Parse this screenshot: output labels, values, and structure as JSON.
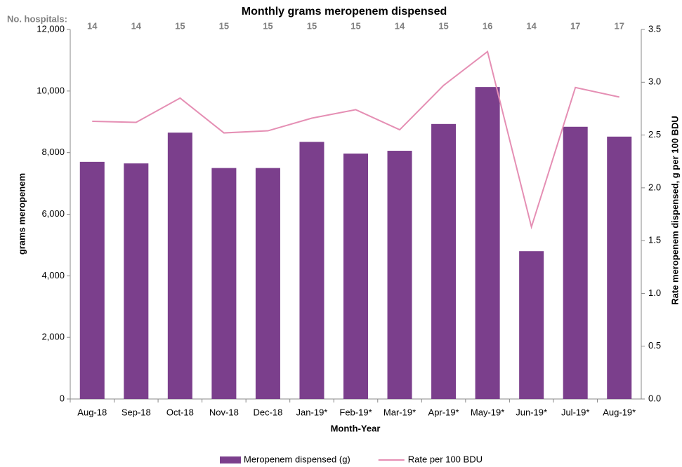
{
  "chart_data": {
    "type": "bar_line",
    "title": "Monthly grams meropenem dispensed",
    "xlabel": "Month-Year",
    "ylabel": "grams meropenem",
    "y2label": "Rate meropenem dispensed, g per 100 BDU",
    "categories": [
      "Aug-18",
      "Sep-18",
      "Oct-18",
      "Nov-18",
      "Dec-18",
      "Jan-19*",
      "Feb-19*",
      "Mar-19*",
      "Apr-19*",
      "May-19*",
      "Jun-19*",
      "Jul-19*",
      "Aug-19*"
    ],
    "series": [
      {
        "name": "Meropenem dispensed (g)",
        "type": "bar",
        "color": "#7b3f8c",
        "values": [
          7700,
          7650,
          8650,
          7500,
          7500,
          8350,
          7970,
          8060,
          8930,
          10130,
          4800,
          8840,
          8520
        ]
      },
      {
        "name": "Rate per 100 BDU",
        "type": "line",
        "axis": "y2",
        "color": "#e58fb4",
        "values": [
          2.63,
          2.62,
          2.85,
          2.52,
          2.54,
          2.66,
          2.74,
          2.55,
          2.97,
          3.29,
          1.63,
          2.95,
          2.86
        ]
      }
    ],
    "annotations": {
      "label": "No. hospitals:",
      "values": [
        14,
        14,
        15,
        15,
        15,
        15,
        15,
        14,
        15,
        16,
        14,
        17,
        17
      ]
    },
    "ylim": [
      0,
      12000
    ],
    "yticks": [
      0,
      {
        "value": 2000,
        "label": "2,000"
      },
      {
        "value": 4000,
        "label": "4,000"
      },
      {
        "value": 6000,
        "label": "6,000"
      },
      {
        "value": 8000,
        "label": "8,000"
      },
      {
        "value": 10000,
        "label": "10,000"
      },
      {
        "value": 12000,
        "label": "12,000"
      }
    ],
    "y2lim": [
      0,
      3.5
    ],
    "y2ticks": [
      {
        "value": 0,
        "label": "0.0"
      },
      0.5,
      {
        "value": 1,
        "label": "1.0"
      },
      1.5,
      {
        "value": 2,
        "label": "2.0"
      },
      2.5,
      {
        "value": 3,
        "label": "3.0"
      },
      3.5
    ],
    "grid": false,
    "legend": "bottom"
  }
}
